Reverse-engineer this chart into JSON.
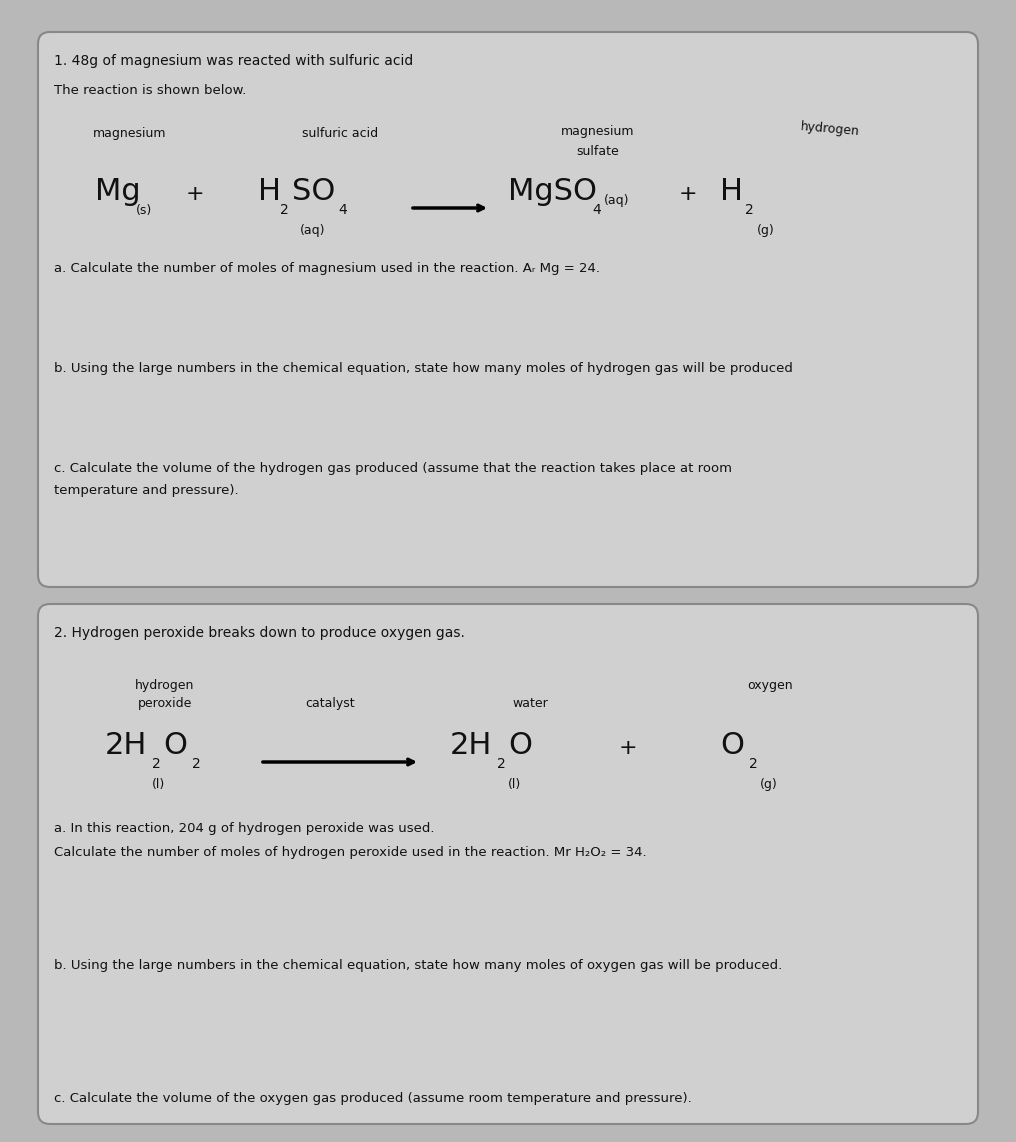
{
  "bg_color": "#b8b8b8",
  "box_bg": "#d0d0d0",
  "box_edge": "#999999",
  "text_color": "#111111",
  "title1": "1. 48g of magnesium was reacted with sulfuric acid",
  "subtitle1": "The reaction is shown below.",
  "q1a": "a. Calculate the number of moles of magnesium used in the reaction. A",
  "q1a_r": " Mg = 24.",
  "q1b": "b. Using the large numbers in the chemical equation, state how many moles of hydrogen gas will be produced",
  "q1c_1": "c. Calculate the volume of the hydrogen gas produced (assume that the reaction takes place at room",
  "q1c_2": "temperature and pressure).",
  "title2": "2. Hydrogen peroxide breaks down to produce oxygen gas.",
  "q2a_line1": "a. In this reaction, 204 g of hydrogen peroxide was used.",
  "q2a_line2_a": "Calculate the number of moles of hydrogen peroxide used in the reaction. Mr H",
  "q2a_line2_b": "O",
  "q2a_line2_c": " = 34.",
  "q2b": "b. Using the large numbers in the chemical equation, state how many moles of oxygen gas will be produced.",
  "q2c": "c. Calculate the volume of the oxygen gas produced (assume room temperature and pressure)."
}
